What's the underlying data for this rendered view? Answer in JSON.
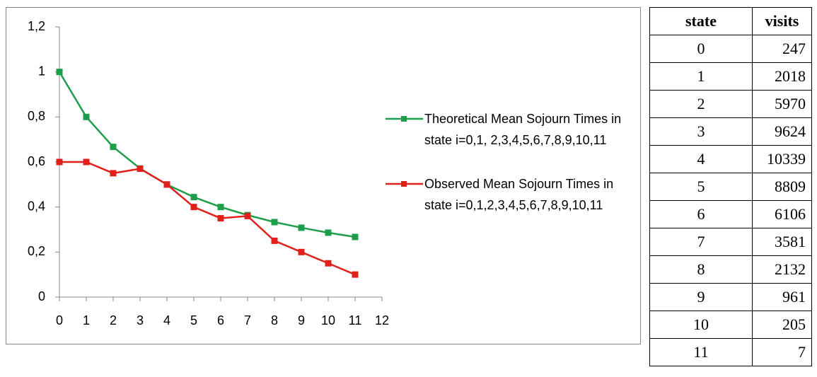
{
  "chart_data": {
    "type": "line",
    "x": [
      0,
      1,
      2,
      3,
      4,
      5,
      6,
      7,
      8,
      9,
      10,
      11
    ],
    "series": [
      {
        "name": "Theoretical Mean Sojourn Times in state i=0,1, 2,3,4,5,6,7,8,9,10,11",
        "color": "#1e9e4a",
        "values": [
          1,
          0.8,
          0.667,
          0.571,
          0.5,
          0.444,
          0.4,
          0.364,
          0.333,
          0.308,
          0.286,
          0.267
        ]
      },
      {
        "name": "Observed Mean Sojourn Times in state i=0,1,2,3,4,5,6,7,8,9,10,11",
        "color": "#e0201b",
        "values": [
          0.6,
          0.6,
          0.55,
          0.57,
          0.5,
          0.4,
          0.35,
          0.36,
          0.25,
          0.2,
          0.15,
          0.1
        ]
      }
    ],
    "xlim": [
      0,
      12
    ],
    "xticks": [
      0,
      1,
      2,
      3,
      4,
      5,
      6,
      7,
      8,
      9,
      10,
      11,
      12
    ],
    "ylim": [
      0,
      1.2
    ],
    "yticks": [
      0,
      {
        "value": 0.2,
        "label": "0,2"
      },
      {
        "value": 0.4,
        "label": "0,4"
      },
      {
        "value": 0.6,
        "label": "0,6"
      },
      {
        "value": 0.8,
        "label": "0,8"
      },
      1,
      {
        "value": 1.2,
        "label": "1,2"
      }
    ],
    "grid": false,
    "legend": "right"
  },
  "table": {
    "header": [
      "state",
      "visits"
    ],
    "rows": [
      [
        0,
        247
      ],
      [
        1,
        2018
      ],
      [
        2,
        5970
      ],
      [
        3,
        9624
      ],
      [
        4,
        10339
      ],
      [
        5,
        8809
      ],
      [
        6,
        6106
      ],
      [
        7,
        3581
      ],
      [
        8,
        2132
      ],
      [
        9,
        961
      ],
      [
        10,
        205
      ],
      [
        11,
        7
      ]
    ]
  }
}
